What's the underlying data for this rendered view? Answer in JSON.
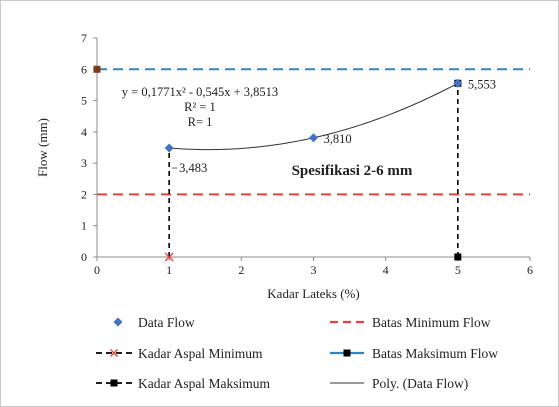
{
  "chart_data": {
    "type": "scatter",
    "title": "",
    "xlabel": "Kadar Lateks (%)",
    "ylabel": "Flow (mm)",
    "xlim": [
      0,
      6
    ],
    "ylim": [
      0,
      7
    ],
    "x_ticks": [
      "0",
      "1",
      "2",
      "3",
      "4",
      "5",
      "6"
    ],
    "y_ticks": [
      "0",
      "1",
      "2",
      "3",
      "4",
      "5",
      "6",
      "7"
    ],
    "grid": false,
    "legend_position": "bottom",
    "series": [
      {
        "name": "Data Flow",
        "kind": "markers",
        "marker": "diamond",
        "color": "#4472C4",
        "points": [
          {
            "x": 1,
            "y": 3.483,
            "label": "3,483"
          },
          {
            "x": 3,
            "y": 3.81,
            "label": "3,810"
          },
          {
            "x": 5,
            "y": 5.553,
            "label": "5,553"
          }
        ]
      },
      {
        "name": "Batas Minimum Flow",
        "kind": "hline",
        "y": 2,
        "x_range": [
          0,
          6
        ],
        "color": "#E8403A",
        "dash": "dashed"
      },
      {
        "name": "Kadar Aspal Minimum",
        "kind": "vline",
        "x": 1,
        "y_range": [
          0,
          3.483
        ],
        "color": "#000000",
        "dash": "dashed",
        "marker": "x",
        "marker_color": "#E8403A"
      },
      {
        "name": "Batas Maksimum Flow",
        "kind": "hline",
        "y": 6,
        "x_range": [
          0,
          6
        ],
        "color": "#2E86C8",
        "dash": "dashed",
        "marker": "square"
      },
      {
        "name": "Kadar Aspal Maksimum",
        "kind": "vline",
        "x": 5,
        "y_range": [
          0,
          5.553
        ],
        "color": "#000000",
        "dash": "dashed",
        "marker": "square"
      },
      {
        "name": "Poly. (Data Flow)",
        "kind": "trendline",
        "coefficients": [
          0.1771,
          -0.545,
          3.8513
        ],
        "x_range": [
          1,
          5
        ],
        "color": "#333333"
      }
    ],
    "annotations": {
      "equation": "y = 0,1771x² - 0,545x + 3,8513",
      "r_squared": "R² = 1",
      "r": "R= 1",
      "specification": "Spesifikasi  2-6 mm"
    }
  }
}
